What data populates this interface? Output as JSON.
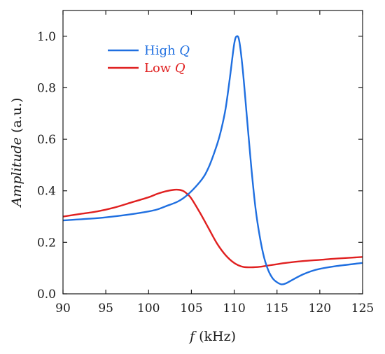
{
  "chart_data": {
    "type": "line",
    "xlabel": {
      "symbol": "f",
      "unit": " (kHz)"
    },
    "ylabel": {
      "symbol": "Amplitude",
      "unit": " (a.u.)"
    },
    "xlim": [
      90,
      125
    ],
    "ylim": [
      0.0,
      1.1
    ],
    "xticks": [
      90,
      95,
      100,
      105,
      110,
      115,
      120,
      125
    ],
    "yticks": [
      0.0,
      0.2,
      0.4,
      0.6,
      0.8,
      1.0
    ],
    "ytick_labels": [
      "0.0",
      "0.2",
      "0.4",
      "0.6",
      "0.8",
      "1.0"
    ],
    "grid": false,
    "legend_position": "top-left",
    "series": [
      {
        "name": "High ",
        "name_symbol": "Q",
        "color": "#1f6fe0",
        "x": [
          90,
          95,
          100,
          102,
          104,
          106,
          107,
          108,
          108.5,
          109,
          109.5,
          110,
          110.3,
          110.6,
          111,
          111.5,
          112,
          112.5,
          113,
          113.5,
          114,
          114.5,
          115,
          115.5,
          116,
          117,
          118,
          119,
          120,
          122,
          125
        ],
        "y": [
          0.285,
          0.297,
          0.32,
          0.34,
          0.37,
          0.435,
          0.49,
          0.58,
          0.64,
          0.72,
          0.84,
          0.97,
          1.0,
          0.98,
          0.87,
          0.68,
          0.49,
          0.33,
          0.22,
          0.14,
          0.09,
          0.06,
          0.045,
          0.037,
          0.04,
          0.058,
          0.075,
          0.088,
          0.097,
          0.108,
          0.12
        ]
      },
      {
        "name": "Low ",
        "name_symbol": "Q",
        "color": "#e02020",
        "x": [
          90,
          92,
          94,
          96,
          98,
          100,
          101,
          102,
          103,
          103.5,
          104,
          104.5,
          105,
          106,
          107,
          108,
          109,
          110,
          111,
          112,
          113,
          114,
          115,
          116,
          118,
          120,
          122,
          125
        ],
        "y": [
          0.3,
          0.31,
          0.32,
          0.335,
          0.355,
          0.375,
          0.388,
          0.398,
          0.404,
          0.404,
          0.4,
          0.388,
          0.37,
          0.315,
          0.255,
          0.195,
          0.15,
          0.12,
          0.105,
          0.103,
          0.105,
          0.11,
          0.115,
          0.12,
          0.127,
          0.132,
          0.137,
          0.143
        ]
      }
    ]
  }
}
